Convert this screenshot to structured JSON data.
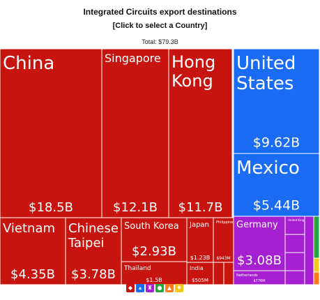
{
  "header": {
    "title": "Integrated Circuits export destinations",
    "subtitle": "[Click to select a Country]",
    "total": "Total: $79.3B"
  },
  "chart_data": {
    "type": "treemap",
    "total": "$79.3B",
    "regions": [
      {
        "name": "Asia",
        "color": "#c8140e"
      },
      {
        "name": "North America",
        "color": "#1a6cf5"
      },
      {
        "name": "Europe",
        "color": "#a61fd1"
      },
      {
        "name": "Africa",
        "color": "#24a63c"
      },
      {
        "name": "Oceania",
        "color": "#f2c81a"
      },
      {
        "name": "South America",
        "color": "#ff7a16"
      }
    ],
    "items": [
      {
        "name": "China",
        "value": 18.5,
        "label": "$18.5B",
        "region": "Asia"
      },
      {
        "name": "Singapore",
        "value": 12.1,
        "label": "$12.1B",
        "region": "Asia"
      },
      {
        "name": "Hong Kong",
        "value": 11.7,
        "label": "$11.7B",
        "region": "Asia"
      },
      {
        "name": "Vietnam",
        "value": 4.35,
        "label": "$4.35B",
        "region": "Asia"
      },
      {
        "name": "Chinese Taipei",
        "value": 3.78,
        "label": "$3.78B",
        "region": "Asia"
      },
      {
        "name": "South Korea",
        "value": 2.93,
        "label": "$2.93B",
        "region": "Asia"
      },
      {
        "name": "Thailand",
        "value": 1.5,
        "label": "$1.5B",
        "region": "Asia"
      },
      {
        "name": "Japan",
        "value": 1.23,
        "label": "$1.23B",
        "region": "Asia"
      },
      {
        "name": "Philippines",
        "value": 0.943,
        "label": "$943M",
        "region": "Asia"
      },
      {
        "name": "India",
        "value": 0.505,
        "label": "$505M",
        "region": "Asia"
      },
      {
        "name": "",
        "value": 0.25,
        "label": "",
        "region": "Asia"
      },
      {
        "name": "",
        "value": 0.18,
        "label": "",
        "region": "Asia"
      },
      {
        "name": "United States",
        "value": 9.62,
        "label": "$9.62B",
        "region": "North America"
      },
      {
        "name": "Mexico",
        "value": 5.44,
        "label": "$5.44B",
        "region": "North America"
      },
      {
        "name": "Germany",
        "value": 3.08,
        "label": "$3.08B",
        "region": "Europe"
      },
      {
        "name": "Netherlands",
        "value": 0.776,
        "label": "$776M",
        "region": "Europe"
      },
      {
        "name": "United Kingdom",
        "value": 0.6,
        "label": "",
        "region": "Europe"
      },
      {
        "name": "",
        "value": 0.4,
        "label": "",
        "region": "Europe"
      },
      {
        "name": "",
        "value": 0.3,
        "label": "",
        "region": "Europe"
      },
      {
        "name": "",
        "value": 0.2,
        "label": "",
        "region": "Europe"
      },
      {
        "name": "",
        "value": 0.15,
        "label": "",
        "region": "Europe"
      },
      {
        "name": "",
        "value": 0.1,
        "label": "",
        "region": "Africa"
      },
      {
        "name": "",
        "value": 0.08,
        "label": "",
        "region": "Oceania"
      },
      {
        "name": "",
        "value": 0.08,
        "label": "",
        "region": "South America"
      }
    ]
  },
  "legend": [
    {
      "name": "Asia",
      "icon": "rickshaw-icon",
      "glyph": "◆",
      "color": "#c8140e"
    },
    {
      "name": "North America",
      "icon": "liberty-icon",
      "glyph": "▴",
      "color": "#1a6cf5"
    },
    {
      "name": "Europe",
      "icon": "tower-icon",
      "glyph": "♜",
      "color": "#a61fd1"
    },
    {
      "name": "Africa",
      "icon": "africa-icon",
      "glyph": "●",
      "color": "#24a63c"
    },
    {
      "name": "South America",
      "icon": "mountain-icon",
      "glyph": "▲",
      "color": "#ff7a16"
    },
    {
      "name": "Oceania",
      "icon": "kangaroo-icon",
      "glyph": "♦",
      "color": "#f2c81a"
    }
  ]
}
